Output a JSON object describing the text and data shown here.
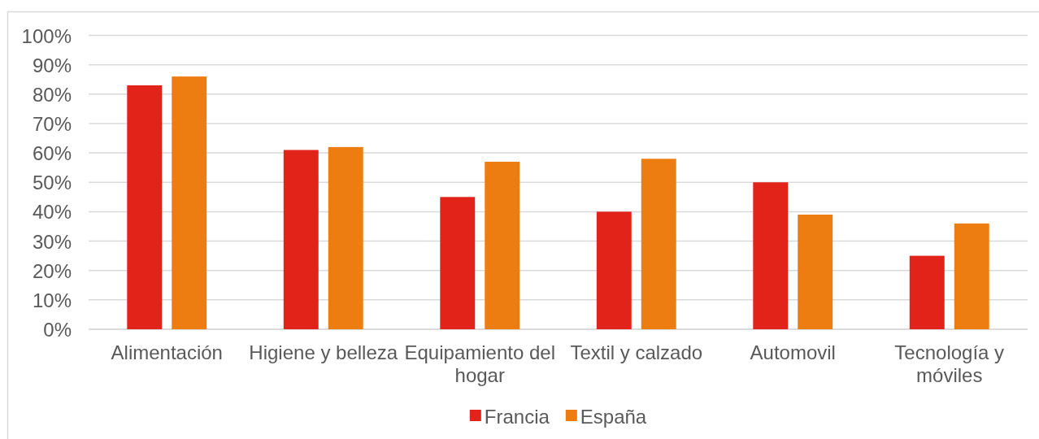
{
  "chart_data": {
    "type": "bar",
    "categories": [
      "Alimentación",
      "Higiene y belleza",
      "Equipamiento del hogar",
      "Textil y calzado",
      "Automovil",
      "Tecnología y móviles"
    ],
    "series": [
      {
        "name": "Francia",
        "color": "#e2231a",
        "values": [
          83,
          61,
          45,
          40,
          50,
          25
        ]
      },
      {
        "name": "España",
        "color": "#ed7d11",
        "values": [
          86,
          62,
          57,
          58,
          39,
          36
        ]
      }
    ],
    "ylim": [
      0,
      100
    ],
    "yticks": [
      {
        "value": 0,
        "label": "0%"
      },
      {
        "value": 10,
        "label": "10%"
      },
      {
        "value": 20,
        "label": "20%"
      },
      {
        "value": 30,
        "label": "30%"
      },
      {
        "value": 40,
        "label": "40%"
      },
      {
        "value": 50,
        "label": "50%"
      },
      {
        "value": 60,
        "label": "60%"
      },
      {
        "value": 70,
        "label": "70%"
      },
      {
        "value": 80,
        "label": "80%"
      },
      {
        "value": 90,
        "label": "90%"
      },
      {
        "value": 100,
        "label": "100%"
      }
    ],
    "grid": "y",
    "legend": "bottom"
  }
}
